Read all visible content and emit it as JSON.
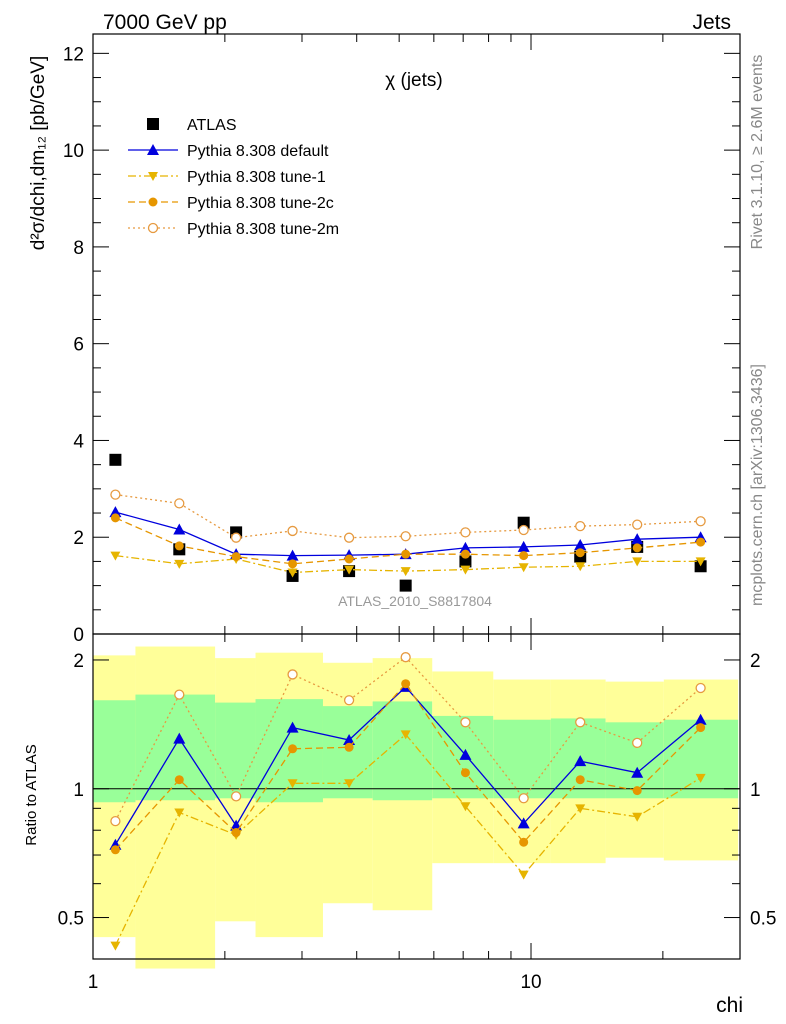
{
  "header": {
    "left": "7000 GeV pp",
    "right": "Jets"
  },
  "side_notes": {
    "rivet": "Rivet 3.1.10, ≥ 2.6M events",
    "mcplots": "mcplots.cern.ch [arXiv:1306.3436]"
  },
  "chart_data": {
    "type": "line",
    "title": "χ (jets)",
    "watermark": "ATLAS_2010_S8817804",
    "xlabel": "chi",
    "xscale": "log",
    "xlim": [
      1,
      30
    ],
    "x_ticks": [
      "1",
      "10"
    ],
    "main": {
      "ylabel": "d²σ/dchi,dm₁₂ [pb/GeV]",
      "ylim": [
        0,
        12.4
      ],
      "y_ticks": [
        "0",
        "2",
        "4",
        "6",
        "8",
        "10",
        "12"
      ],
      "x": [
        1.125,
        1.574,
        2.122,
        2.855,
        3.843,
        5.174,
        7.084,
        9.621,
        12.952,
        17.475,
        24.39
      ],
      "series": [
        {
          "name": "ATLAS",
          "color": "#000000",
          "marker": "square",
          "line": "none",
          "values": [
            3.6,
            1.75,
            2.1,
            1.2,
            1.3,
            1.0,
            1.5,
            2.3,
            1.6,
            1.8,
            1.4
          ]
        },
        {
          "name": "Pythia 8.308 default",
          "color": "#0000dd",
          "marker": "triangle-up",
          "line": "solid",
          "values": [
            2.52,
            2.16,
            1.65,
            1.62,
            1.63,
            1.65,
            1.78,
            1.8,
            1.84,
            1.96,
            2.0
          ]
        },
        {
          "name": "Pythia 8.308 tune-1",
          "color": "#e6b400",
          "marker": "triangle-down",
          "line": "dashdot",
          "values": [
            1.62,
            1.45,
            1.55,
            1.27,
            1.33,
            1.3,
            1.33,
            1.38,
            1.4,
            1.5,
            1.5
          ]
        },
        {
          "name": "Pythia 8.308 tune-2c",
          "color": "#e69600",
          "marker": "circle",
          "line": "dashed",
          "values": [
            2.4,
            1.82,
            1.6,
            1.45,
            1.55,
            1.65,
            1.65,
            1.62,
            1.68,
            1.78,
            1.9
          ]
        },
        {
          "name": "Pythia 8.308 tune-2m",
          "color": "#e69a40",
          "marker": "circle-open",
          "line": "dotted",
          "values": [
            2.88,
            2.7,
            1.99,
            2.13,
            1.99,
            2.02,
            2.1,
            2.15,
            2.23,
            2.26,
            2.33
          ]
        }
      ]
    },
    "ratio": {
      "ylabel": "Ratio to ATLAS",
      "ylim": [
        0.4,
        2.3
      ],
      "yscale": "log",
      "y_ticks": [
        "0.5",
        "1",
        "2"
      ],
      "x_edges": [
        1.0,
        1.25,
        1.9,
        2.35,
        3.35,
        4.35,
        5.95,
        8.2,
        11.1,
        14.8,
        20.1,
        29.7
      ],
      "band_outer": {
        "lower": [
          0.45,
          0.38,
          0.49,
          0.45,
          0.54,
          0.52,
          0.67,
          0.67,
          0.67,
          0.69,
          0.68
        ],
        "upper": [
          2.05,
          2.15,
          2.02,
          2.08,
          1.97,
          2.02,
          1.88,
          1.8,
          1.8,
          1.78,
          1.8
        ]
      },
      "band_inner": {
        "lower": [
          0.93,
          0.94,
          0.95,
          0.93,
          0.95,
          0.94,
          0.95,
          0.95,
          0.95,
          0.95,
          0.95
        ],
        "upper": [
          1.61,
          1.66,
          1.59,
          1.62,
          1.56,
          1.6,
          1.48,
          1.45,
          1.46,
          1.43,
          1.45
        ]
      },
      "band_colors": {
        "outer": "#ffff99",
        "inner": "#99ff99"
      },
      "series": [
        {
          "name": "Pythia 8.308 default",
          "values": [
            0.74,
            1.31,
            0.82,
            1.39,
            1.3,
            1.73,
            1.2,
            0.83,
            1.16,
            1.09,
            1.45
          ]
        },
        {
          "name": "Pythia 8.308 tune-1",
          "values": [
            0.43,
            0.88,
            0.78,
            1.03,
            1.03,
            1.34,
            0.91,
            0.63,
            0.9,
            0.86,
            1.06
          ]
        },
        {
          "name": "Pythia 8.308 tune-2c",
          "values": [
            0.72,
            1.05,
            0.79,
            1.24,
            1.25,
            1.76,
            1.09,
            0.75,
            1.05,
            0.99,
            1.39
          ]
        },
        {
          "name": "Pythia 8.308 tune-2m",
          "values": [
            0.84,
            1.66,
            0.96,
            1.85,
            1.61,
            2.03,
            1.43,
            0.95,
            1.43,
            1.28,
            1.72
          ]
        }
      ]
    }
  }
}
